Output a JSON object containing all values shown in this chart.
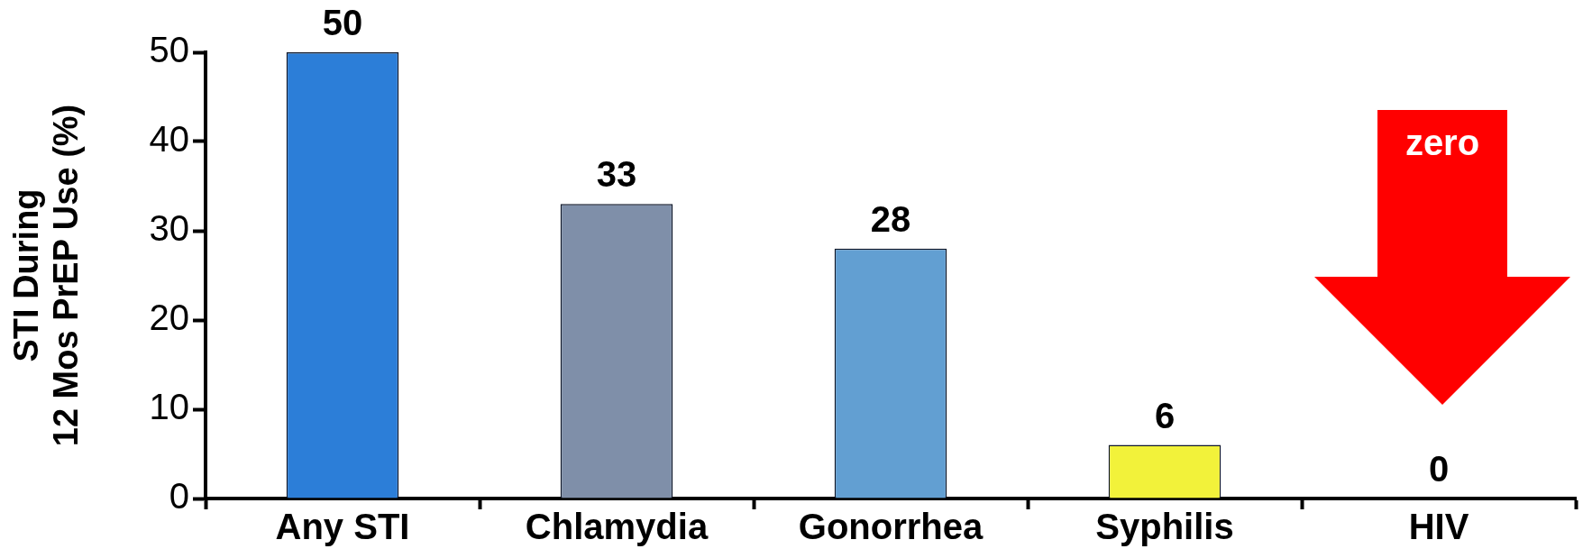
{
  "chart_data": {
    "type": "bar",
    "categories": [
      "Any STI",
      "Chlamydia",
      "Gonorrhea",
      "Syphilis",
      "HIV"
    ],
    "values": [
      50,
      33,
      28,
      6,
      0
    ],
    "colors": [
      "#2c7ed8",
      "#7f8fa9",
      "#629fd2",
      "#f2f23a",
      null
    ],
    "ylabel": "STI During\n12 Mos PrEP Use (%)",
    "ylim": [
      0,
      50
    ],
    "yticks": [
      0,
      10,
      20,
      30,
      40,
      50
    ],
    "data_labels": true,
    "grid": false,
    "legend": false,
    "annotations": [
      "zero"
    ]
  }
}
